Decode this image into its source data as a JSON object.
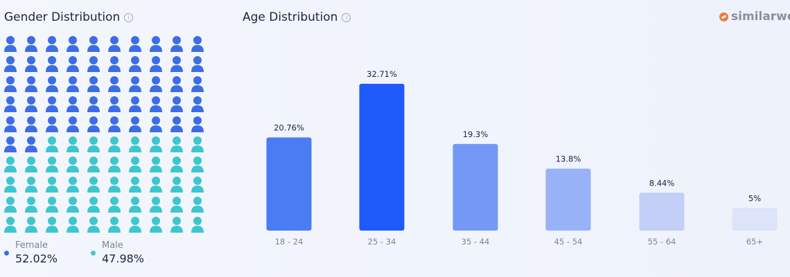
{
  "gender": {
    "title": "Gender Distribution",
    "female_label": "Female",
    "female_value": "52.02%",
    "male_label": "Male",
    "male_value": "47.98%",
    "female_color": "#3d6de6",
    "male_color": "#3ec6cf",
    "grid_total": 100,
    "female_icons": 52
  },
  "age": {
    "title": "Age Distribution"
  },
  "logo": {
    "text": "similarwe"
  },
  "chart_data": [
    {
      "type": "pictograph",
      "title": "Gender Distribution",
      "series": [
        {
          "name": "Female",
          "value": 52.02
        },
        {
          "name": "Male",
          "value": 47.98
        }
      ]
    },
    {
      "type": "bar",
      "title": "Age Distribution",
      "categories": [
        "18 - 24",
        "25 - 34",
        "35 - 44",
        "45 - 54",
        "55 - 64",
        "65+"
      ],
      "values": [
        20.76,
        32.71,
        19.3,
        13.8,
        8.44,
        5
      ],
      "labels": [
        "20.76%",
        "32.71%",
        "19.3%",
        "13.8%",
        "8.44%",
        "5%"
      ],
      "colors": [
        "#4a7cf3",
        "#1f5bfb",
        "#7399f5",
        "#97b2f7",
        "#c3cff7",
        "#dde3f8"
      ],
      "ylim": [
        0,
        35
      ],
      "grid": false
    }
  ]
}
